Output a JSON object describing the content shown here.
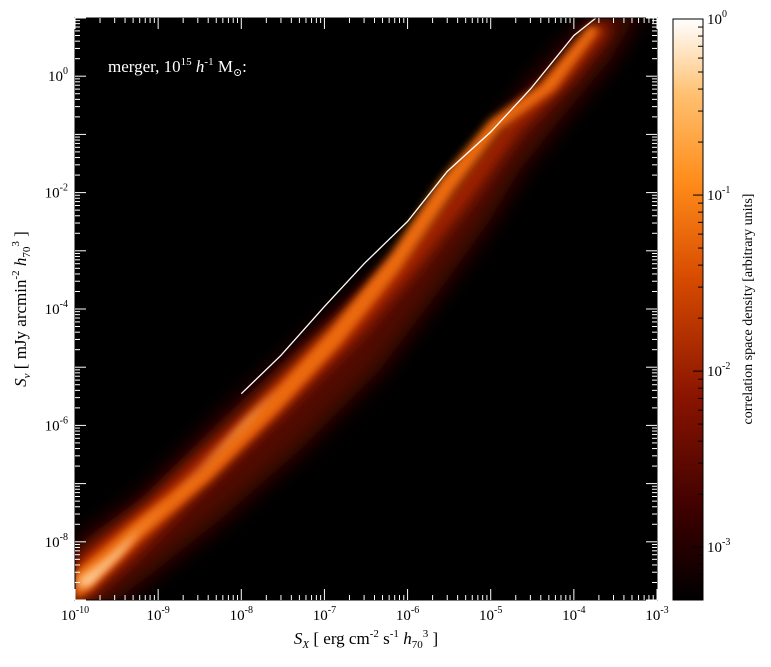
{
  "chart_data": {
    "type": "heatmap",
    "annotation": {
      "prefix": "merger, 10",
      "exp": "15",
      "h": "h",
      "hexp": "-1",
      "M": "M",
      "sub": "⊙",
      "suffix": ":"
    },
    "xlabel": {
      "sym": "S",
      "sub": "X",
      "open": "[ erg cm",
      "e1": "-2",
      "mid": " s",
      "e2": "-1",
      "h": "h",
      "hsub": "70",
      "e3": "3",
      "close": " ]"
    },
    "ylabel": {
      "sym": "S",
      "sub": "ν",
      "open": "[ mJy arcmin",
      "e1": "-2",
      "h": "h",
      "hsub": "70",
      "e3": "3",
      "close": " ]"
    },
    "colorbar_label": "correlation space density [arbitrary units]",
    "x_scale": "log",
    "y_scale": "log",
    "xlim_exp": [
      -10,
      -3
    ],
    "ylim_exp": [
      -9,
      1
    ],
    "x_tick_labels": [
      {
        "base": "10",
        "exp": "-10"
      },
      {
        "base": "10",
        "exp": "-9"
      },
      {
        "base": "10",
        "exp": "-8"
      },
      {
        "base": "10",
        "exp": "-7"
      },
      {
        "base": "10",
        "exp": "-6"
      },
      {
        "base": "10",
        "exp": "-5"
      },
      {
        "base": "10",
        "exp": "-4"
      },
      {
        "base": "10",
        "exp": "-3"
      }
    ],
    "y_tick_labels": [
      {
        "base": "10",
        "exp": "-8"
      },
      {
        "base": "10",
        "exp": "-6"
      },
      {
        "base": "10",
        "exp": "-4"
      },
      {
        "base": "10",
        "exp": "-2"
      },
      {
        "base": "10",
        "exp": "0"
      }
    ],
    "colorbar_scale": "log",
    "colorbar_lim_exp": [
      -3.3,
      0
    ],
    "colorbar_tick_labels": [
      {
        "base": "10",
        "exp": "-3"
      },
      {
        "base": "10",
        "exp": "-2"
      },
      {
        "base": "10",
        "exp": "-1"
      },
      {
        "base": "10",
        "exp": "0"
      }
    ],
    "colormap": [
      "#000000",
      "#3c0000",
      "#8a1400",
      "#d64a00",
      "#ff8c1a",
      "#ffc070",
      "#ffffff"
    ],
    "median_line": {
      "color": "#ffffff",
      "points": [
        {
          "x": 1e-08,
          "y": 3.5e-06
        },
        {
          "x": 3e-08,
          "y": 1.6e-05
        },
        {
          "x": 1e-07,
          "y": 0.00011
        },
        {
          "x": 3e-07,
          "y": 0.0006
        },
        {
          "x": 1e-06,
          "y": 0.0032
        },
        {
          "x": 3e-06,
          "y": 0.023
        },
        {
          "x": 1e-05,
          "y": 0.11
        },
        {
          "x": 3e-05,
          "y": 0.6
        },
        {
          "x": 0.0001,
          "y": 5.0
        },
        {
          "x": 0.0002,
          "y": 11
        }
      ]
    }
  }
}
